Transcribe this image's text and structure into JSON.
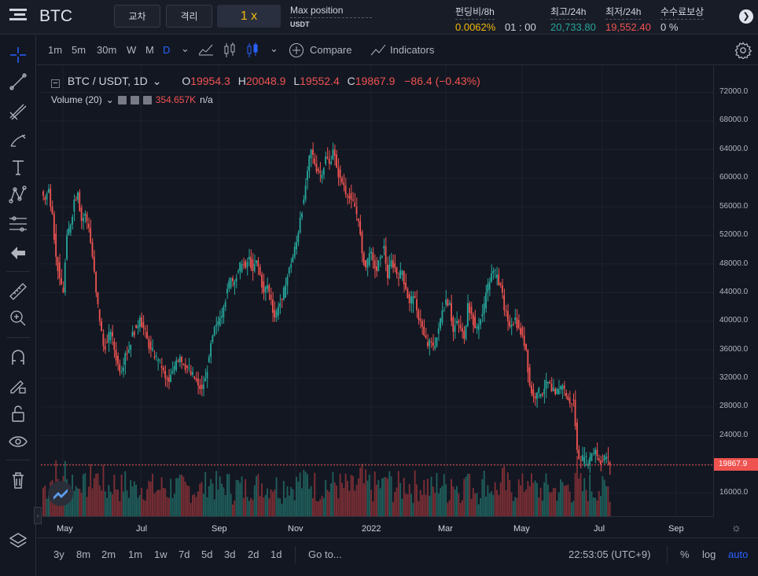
{
  "header": {
    "symbol": "BTC",
    "cross_label": "교차",
    "isolated_label": "격리",
    "leverage": "1 x",
    "max_position_label": "Max position",
    "max_position_value": "USDT",
    "funding_label": "펀딩비/8h",
    "funding_rate": "0.0062%",
    "funding_countdown": "01 : 00",
    "high_label": "최고/24h",
    "high_value": "20,733.80",
    "low_label": "최저/24h",
    "low_value": "19,552.40",
    "fee_label": "수수료보상",
    "fee_value": "0 %"
  },
  "toolbar": {
    "intervals": [
      "1m",
      "5m",
      "30m",
      "W",
      "M",
      "D"
    ],
    "active_interval": "D",
    "compare_label": "Compare",
    "indicators_label": "Indicators"
  },
  "legend": {
    "pair": "BTC / USDT, 1D",
    "o_label": "O",
    "o": "19954.3",
    "h_label": "H",
    "h": "20048.9",
    "l_label": "L",
    "l": "19552.4",
    "c_label": "C",
    "c": "19867.9",
    "change": "−86.4 (−0.43%)",
    "volume_label": "Volume (20)",
    "volume_value": "354.657K",
    "volume_ma": "n/a"
  },
  "price_axis": [
    "72000.0",
    "68000.0",
    "64000.0",
    "60000.0",
    "56000.0",
    "52000.0",
    "48000.0",
    "44000.0",
    "40000.0",
    "36000.0",
    "32000.0",
    "28000.0",
    "24000.0",
    "16000.0"
  ],
  "last_price": "19867.9",
  "time_axis": [
    "May",
    "Jul",
    "Sep",
    "Nov",
    "2022",
    "Mar",
    "May",
    "Jul",
    "Sep"
  ],
  "bottom": {
    "ranges": [
      "3y",
      "8m",
      "2m",
      "1m",
      "1w",
      "7d",
      "5d",
      "3d",
      "2d",
      "1d"
    ],
    "goto_label": "Go to...",
    "clock": "22:53:05 (UTC+9)",
    "percent_label": "%",
    "log_label": "log",
    "auto_label": "auto"
  },
  "colors": {
    "up": "#26a69a",
    "down": "#ef5350",
    "accent": "#2962ff",
    "bg": "#131722"
  },
  "chart_data": {
    "type": "candlestick",
    "series_close": [
      57000,
      58500,
      55000,
      49000,
      46000,
      44000,
      52000,
      53500,
      57000,
      58000,
      54000,
      55000,
      53000,
      49000,
      44000,
      40000,
      36500,
      37000,
      38500,
      36000,
      34000,
      33000,
      35500,
      36000,
      38500,
      39000,
      40500,
      39000,
      37500,
      36000,
      35000,
      34500,
      33500,
      32000,
      31500,
      33000,
      34500,
      35000,
      34000,
      33500,
      32500,
      32000,
      31000,
      30500,
      32000,
      35000,
      38000,
      39500,
      40500,
      42000,
      44500,
      46000,
      45500,
      47000,
      48000,
      47500,
      49000,
      47000,
      48500,
      46500,
      44000,
      45000,
      43000,
      40500,
      42000,
      43000,
      45000,
      47500,
      49000,
      51000,
      54500,
      57000,
      61000,
      64000,
      62000,
      61000,
      60500,
      63000,
      62000,
      64000,
      61500,
      60000,
      59000,
      57500,
      57000,
      56000,
      54000,
      49500,
      47500,
      49500,
      48500,
      47000,
      49000,
      50500,
      46000,
      48500,
      47500,
      46000,
      47000,
      44500,
      42500,
      43500,
      41500,
      40000,
      38000,
      36500,
      37000,
      36500,
      39000,
      41500,
      43000,
      42500,
      38500,
      40000,
      39000,
      37500,
      42500,
      41000,
      39000,
      39500,
      41000,
      44000,
      45500,
      47000,
      46500,
      45000,
      41500,
      40000,
      39500,
      40500,
      39000,
      38000,
      36000,
      31000,
      29500,
      30000,
      29800,
      30500,
      31500,
      30200,
      29800,
      30500,
      31000,
      29500,
      28500,
      29000,
      22000,
      20500,
      21000,
      20000,
      21500,
      22000,
      20500,
      20500,
      21000,
      19900
    ]
  }
}
